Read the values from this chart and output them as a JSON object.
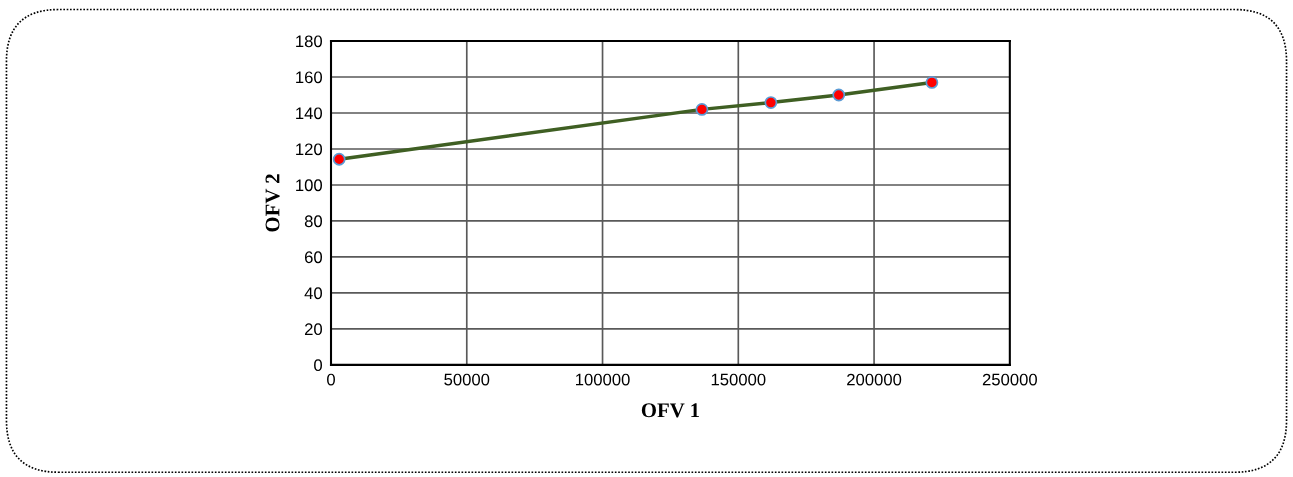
{
  "chart_data": {
    "type": "line",
    "xlabel": "OFV 1",
    "ylabel": "OFV 2",
    "x": [
      3000,
      136600,
      162000,
      187000,
      221300
    ],
    "series": [
      {
        "color": "#3f5f23",
        "values": [
          114.3,
          142,
          145.8,
          150,
          157
        ]
      }
    ],
    "marker": "circle",
    "line_style": "solid",
    "grid": true,
    "xlim": [
      0,
      250000
    ],
    "xticks": [
      0,
      50000,
      100000,
      150000,
      200000,
      250000
    ],
    "ylim": [
      0,
      180
    ],
    "yticks": [
      0,
      20,
      40,
      60,
      80,
      100,
      120,
      140,
      160,
      180
    ]
  }
}
